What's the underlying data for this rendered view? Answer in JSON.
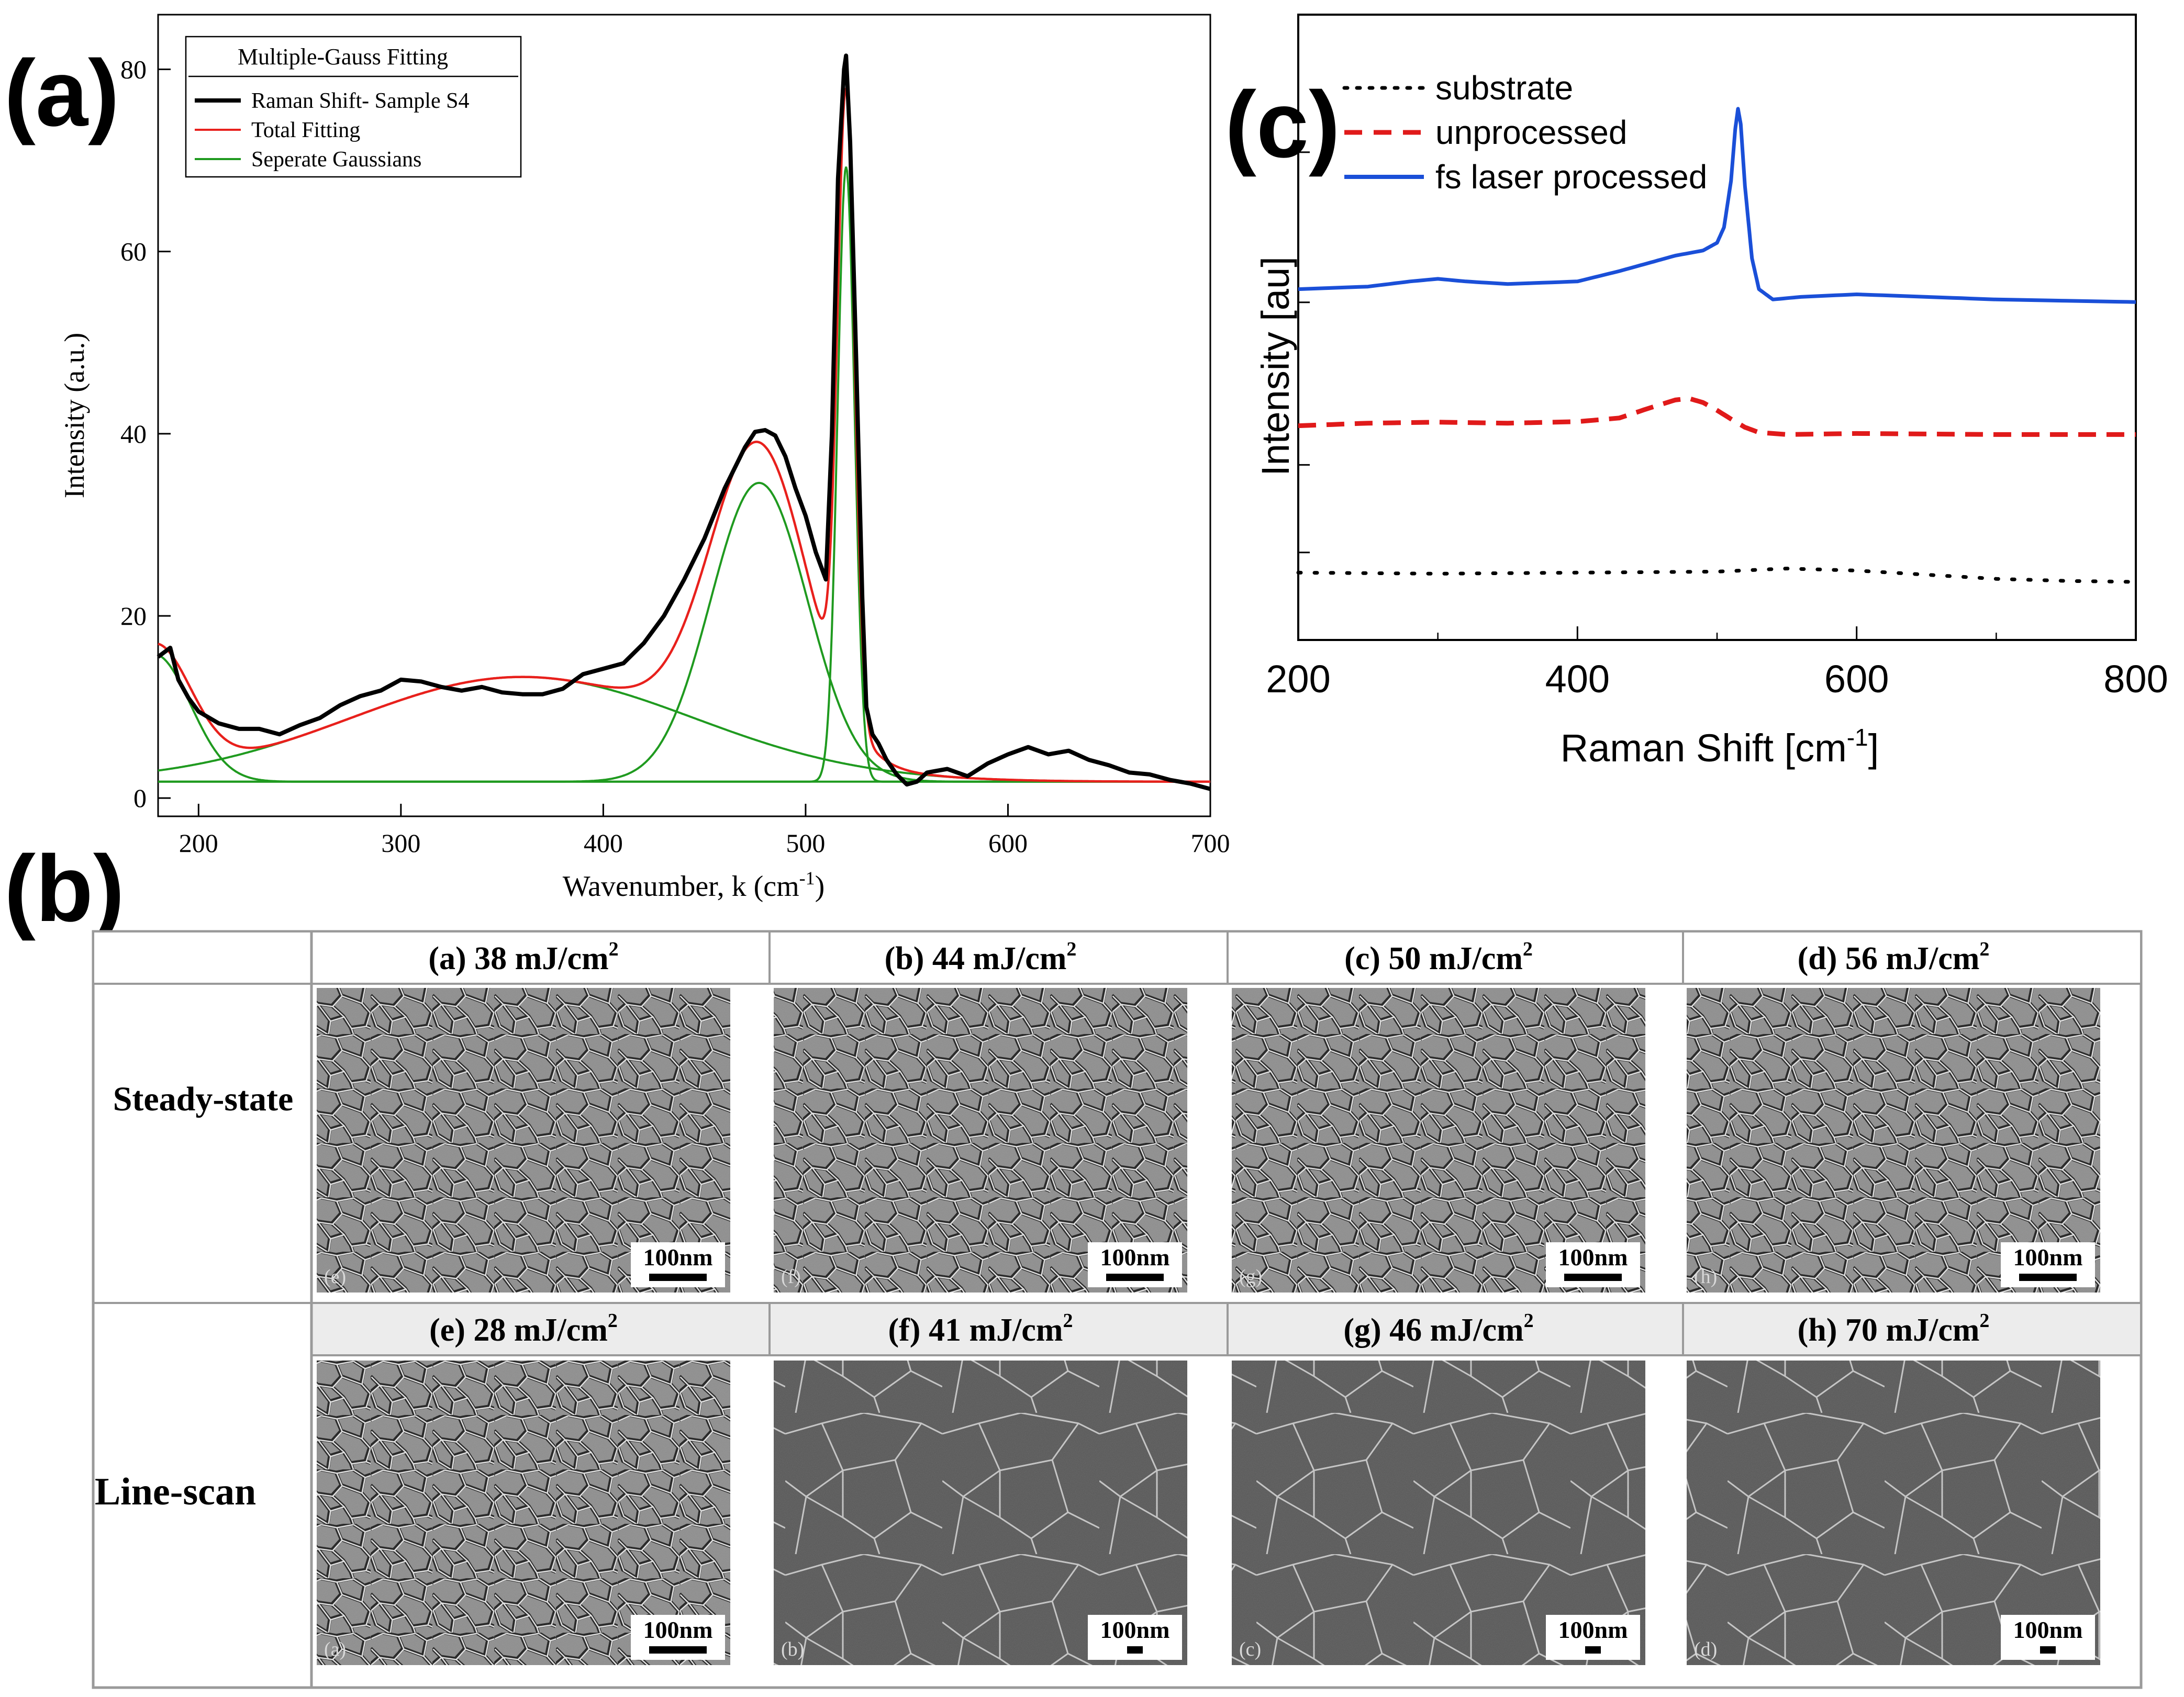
{
  "figure": {
    "panel_a_label": "(a)",
    "panel_b_label": "(b)",
    "panel_c_label": "(c)"
  },
  "chart_data": [
    {
      "id": "a",
      "type": "line",
      "title": "",
      "xlabel": "Wavenumber, k (cm",
      "xlabel_sup": "-1",
      "xlabel_tail": ")",
      "ylabel": "Intensity (a.u.)",
      "xlim": [
        180,
        700
      ],
      "ylim": [
        -2,
        86
      ],
      "xticks": [
        200,
        300,
        400,
        500,
        600,
        700
      ],
      "yticks": [
        0,
        20,
        40,
        60,
        80
      ],
      "legend": {
        "title": "Multiple-Gauss Fitting",
        "placement": "top-left",
        "entries": [
          "Raman Shift- Sample S4",
          "Total Fitting",
          "Seperate Gaussians"
        ]
      },
      "baseline": 1.8,
      "gaussians": [
        {
          "center": 178,
          "amplitude": 14,
          "sigma": 18
        },
        {
          "center": 360,
          "amplitude": 11.5,
          "sigma": 85
        },
        {
          "center": 477,
          "amplitude": 32.8,
          "sigma": 24
        },
        {
          "center": 520,
          "amplitude": 67.5,
          "sigma": 4.2
        }
      ],
      "series": [
        {
          "name": "Raman Shift- Sample S4",
          "color": "#000000",
          "x": [
            180,
            186,
            190,
            195,
            200,
            210,
            220,
            230,
            240,
            250,
            260,
            270,
            280,
            290,
            300,
            310,
            320,
            330,
            340,
            350,
            360,
            370,
            380,
            390,
            400,
            410,
            420,
            430,
            440,
            450,
            460,
            470,
            475,
            480,
            485,
            490,
            495,
            500,
            505,
            510,
            513,
            516,
            519,
            520,
            522,
            525,
            528,
            530,
            533,
            536,
            540,
            545,
            550,
            555,
            560,
            570,
            580,
            590,
            600,
            610,
            620,
            630,
            640,
            650,
            660,
            670,
            680,
            690,
            700
          ],
          "y": [
            15.5,
            16.5,
            13,
            11,
            9.5,
            8.2,
            7.6,
            7.6,
            7,
            8,
            8.8,
            10.2,
            11.2,
            11.8,
            13,
            12.8,
            12.2,
            11.8,
            12.2,
            11.6,
            11.4,
            11.4,
            12,
            13.6,
            14.2,
            14.8,
            17,
            20,
            24,
            28.5,
            34,
            38.5,
            40.2,
            40.4,
            39.8,
            37.5,
            34,
            31,
            27,
            24,
            40,
            68,
            80,
            81.5,
            72,
            48,
            22,
            10,
            7,
            6,
            4.2,
            2.6,
            1.5,
            1.8,
            2.8,
            3.2,
            2.4,
            3.8,
            4.8,
            5.6,
            4.8,
            5.2,
            4.2,
            3.6,
            2.8,
            2.6,
            2,
            1.6,
            1
          ]
        },
        {
          "name": "Total Fitting",
          "color": "#e8201c"
        },
        {
          "name": "Seperate Gaussians",
          "color": "#1f9a1f"
        }
      ]
    },
    {
      "id": "c",
      "type": "line",
      "title": "",
      "xlabel": "Raman Shift [cm",
      "xlabel_sup": "-1",
      "xlabel_tail": "]",
      "ylabel": "Intensity [au]",
      "xlim": [
        200,
        800
      ],
      "ylim": [
        0,
        100
      ],
      "xticks": [
        200,
        400,
        600,
        800
      ],
      "legend": {
        "placement": "top-left",
        "entries": [
          "substrate",
          "unprocessed",
          "fs laser processed"
        ]
      },
      "series": [
        {
          "name": "substrate",
          "color": "#000000",
          "style": "dotted",
          "x": [
            200,
            300,
            400,
            500,
            550,
            600,
            650,
            700,
            750,
            800
          ],
          "y": [
            9,
            8.8,
            9,
            9.2,
            9.8,
            9.4,
            8.6,
            7.8,
            7.4,
            7.2
          ]
        },
        {
          "name": "unprocessed",
          "color": "#e01a1a",
          "style": "dashed",
          "x": [
            200,
            250,
            300,
            350,
            400,
            430,
            450,
            470,
            480,
            490,
            500,
            510,
            520,
            530,
            550,
            600,
            650,
            700,
            750,
            800
          ],
          "y": [
            37.5,
            38,
            38.2,
            38,
            38.3,
            39,
            40.8,
            42.5,
            42.8,
            42,
            40.5,
            38.8,
            37.2,
            36.2,
            35.8,
            36,
            35.9,
            35.8,
            35.8,
            35.8
          ]
        },
        {
          "name": "fs laser processed",
          "color": "#1a4fd8",
          "style": "solid",
          "x": [
            200,
            250,
            280,
            300,
            320,
            350,
            400,
            430,
            450,
            470,
            490,
            500,
            505,
            510,
            513,
            515,
            517,
            520,
            525,
            530,
            540,
            560,
            600,
            650,
            700,
            800
          ],
          "y": [
            64,
            64.5,
            65.5,
            66,
            65.5,
            65,
            65.5,
            67.5,
            69,
            70.5,
            71.5,
            73,
            76,
            85,
            95,
            99,
            96,
            84,
            70,
            64,
            62,
            62.5,
            63,
            62.5,
            62,
            61.5
          ]
        }
      ]
    }
  ],
  "sem_table": {
    "row_labels": [
      "Steady-state",
      "Line-scan"
    ],
    "headers": [
      {
        "prefix": "(a) 38 mJ/cm",
        "sup": "2"
      },
      {
        "prefix": "(b) 44 mJ/cm",
        "sup": "2"
      },
      {
        "prefix": "(c) 50 mJ/cm",
        "sup": "2"
      },
      {
        "prefix": "(d) 56 mJ/cm",
        "sup": "2"
      },
      {
        "prefix": "(e) 28 mJ/cm",
        "sup": "2"
      },
      {
        "prefix": "(f) 41 mJ/cm",
        "sup": "2"
      },
      {
        "prefix": "(g) 46 mJ/cm",
        "sup": "2"
      },
      {
        "prefix": "(h) 70 mJ/cm",
        "sup": "2"
      }
    ],
    "corner_tags": [
      "(e)",
      "(f)",
      "(g)",
      "(h)",
      "(a)",
      "(b)",
      "(c)",
      "(d)"
    ],
    "scale_bar": "100nm",
    "colors": {
      "fine_grain": "#8a8a8a",
      "dark_grain": "#4f4f4f",
      "boundary_light": "#ececec",
      "boundary_dark": "#1a1a1a"
    }
  }
}
